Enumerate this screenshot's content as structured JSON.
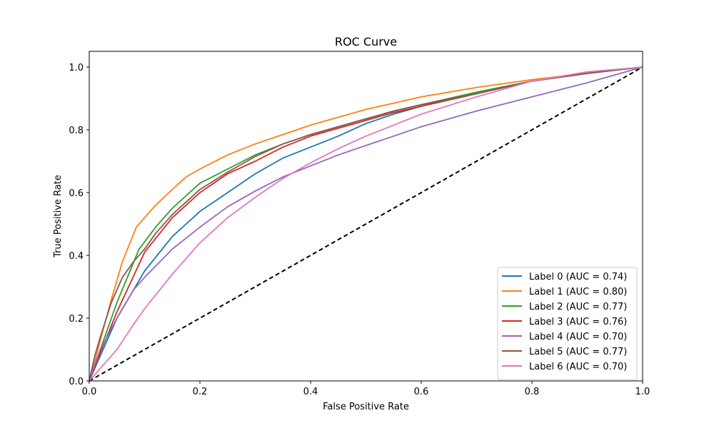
{
  "chart_data": {
    "type": "line",
    "title": "ROC Curve",
    "xlabel": "False Positive Rate",
    "ylabel": "True Positive Rate",
    "xlim": [
      0.0,
      1.0
    ],
    "ylim": [
      0.0,
      1.05
    ],
    "xticks": [
      "0.0",
      "0.2",
      "0.4",
      "0.6",
      "0.8",
      "1.0"
    ],
    "yticks": [
      "0.0",
      "0.2",
      "0.4",
      "0.6",
      "0.8",
      "1.0"
    ],
    "grid": false,
    "legend_position": "lower-right",
    "reference_line": {
      "x": [
        0,
        1
      ],
      "y": [
        0,
        1
      ],
      "color": "#000000",
      "style": "dashed"
    },
    "series": [
      {
        "name": "Label 0 (AUC = 0.74)",
        "color": "#1f77b4",
        "x": [
          0,
          0.02,
          0.05,
          0.1,
          0.15,
          0.2,
          0.25,
          0.3,
          0.35,
          0.4,
          0.45,
          0.5,
          0.55,
          0.6,
          0.7,
          0.8,
          0.9,
          1.0
        ],
        "y": [
          0,
          0.08,
          0.2,
          0.35,
          0.46,
          0.54,
          0.6,
          0.66,
          0.71,
          0.745,
          0.78,
          0.82,
          0.85,
          0.875,
          0.92,
          0.955,
          0.98,
          1.0
        ]
      },
      {
        "name": "Label 1 (AUC = 0.80)",
        "color": "#ff7f0e",
        "x": [
          0,
          0.01,
          0.02,
          0.04,
          0.06,
          0.085,
          0.1,
          0.12,
          0.15,
          0.175,
          0.2,
          0.25,
          0.3,
          0.35,
          0.4,
          0.45,
          0.5,
          0.55,
          0.6,
          0.7,
          0.8,
          0.9,
          1.0
        ],
        "y": [
          0,
          0.06,
          0.13,
          0.26,
          0.38,
          0.49,
          0.52,
          0.56,
          0.61,
          0.65,
          0.675,
          0.72,
          0.755,
          0.785,
          0.815,
          0.84,
          0.865,
          0.885,
          0.905,
          0.935,
          0.96,
          0.98,
          1.0
        ]
      },
      {
        "name": "Label 2 (AUC = 0.77)",
        "color": "#2ca02c",
        "x": [
          0,
          0.02,
          0.05,
          0.09,
          0.12,
          0.15,
          0.2,
          0.25,
          0.3,
          0.35,
          0.4,
          0.45,
          0.5,
          0.55,
          0.6,
          0.7,
          0.8,
          0.9,
          1.0
        ],
        "y": [
          0,
          0.1,
          0.25,
          0.42,
          0.49,
          0.55,
          0.63,
          0.675,
          0.72,
          0.755,
          0.785,
          0.81,
          0.835,
          0.86,
          0.88,
          0.92,
          0.955,
          0.98,
          1.0
        ]
      },
      {
        "name": "Label 3 (AUC = 0.76)",
        "color": "#d62728",
        "x": [
          0,
          0.02,
          0.05,
          0.1,
          0.15,
          0.2,
          0.25,
          0.3,
          0.35,
          0.4,
          0.45,
          0.5,
          0.55,
          0.6,
          0.7,
          0.8,
          0.9,
          1.0
        ],
        "y": [
          0,
          0.09,
          0.22,
          0.41,
          0.52,
          0.6,
          0.66,
          0.7,
          0.745,
          0.78,
          0.805,
          0.83,
          0.855,
          0.875,
          0.915,
          0.955,
          0.98,
          1.0
        ]
      },
      {
        "name": "Label 4 (AUC = 0.70)",
        "color": "#9467bd",
        "x": [
          0,
          0.02,
          0.05,
          0.08,
          0.1,
          0.15,
          0.2,
          0.25,
          0.3,
          0.35,
          0.4,
          0.45,
          0.5,
          0.55,
          0.6,
          0.7,
          0.8,
          0.9,
          1.0
        ],
        "y": [
          0,
          0.1,
          0.2,
          0.29,
          0.33,
          0.42,
          0.49,
          0.555,
          0.605,
          0.65,
          0.685,
          0.72,
          0.75,
          0.78,
          0.81,
          0.86,
          0.905,
          0.95,
          1.0
        ]
      },
      {
        "name": "Label 5 (AUC = 0.77)",
        "color": "#8c564b",
        "x": [
          0,
          0.01,
          0.02,
          0.04,
          0.06,
          0.08,
          0.1,
          0.12,
          0.15,
          0.2,
          0.25,
          0.3,
          0.35,
          0.4,
          0.45,
          0.5,
          0.55,
          0.6,
          0.7,
          0.8,
          0.9,
          1.0
        ],
        "y": [
          0,
          0.08,
          0.14,
          0.25,
          0.33,
          0.38,
          0.42,
          0.47,
          0.53,
          0.61,
          0.665,
          0.715,
          0.755,
          0.785,
          0.81,
          0.835,
          0.86,
          0.88,
          0.915,
          0.955,
          0.98,
          1.0
        ]
      },
      {
        "name": "Label 6 (AUC = 0.70)",
        "color": "#e377c2",
        "x": [
          0,
          0.02,
          0.05,
          0.08,
          0.1,
          0.15,
          0.2,
          0.25,
          0.3,
          0.35,
          0.4,
          0.45,
          0.5,
          0.55,
          0.6,
          0.7,
          0.8,
          0.9,
          1.0
        ],
        "y": [
          0,
          0.04,
          0.1,
          0.18,
          0.23,
          0.34,
          0.44,
          0.52,
          0.585,
          0.645,
          0.695,
          0.74,
          0.78,
          0.815,
          0.85,
          0.905,
          0.955,
          0.985,
          1.0
        ]
      }
    ]
  }
}
